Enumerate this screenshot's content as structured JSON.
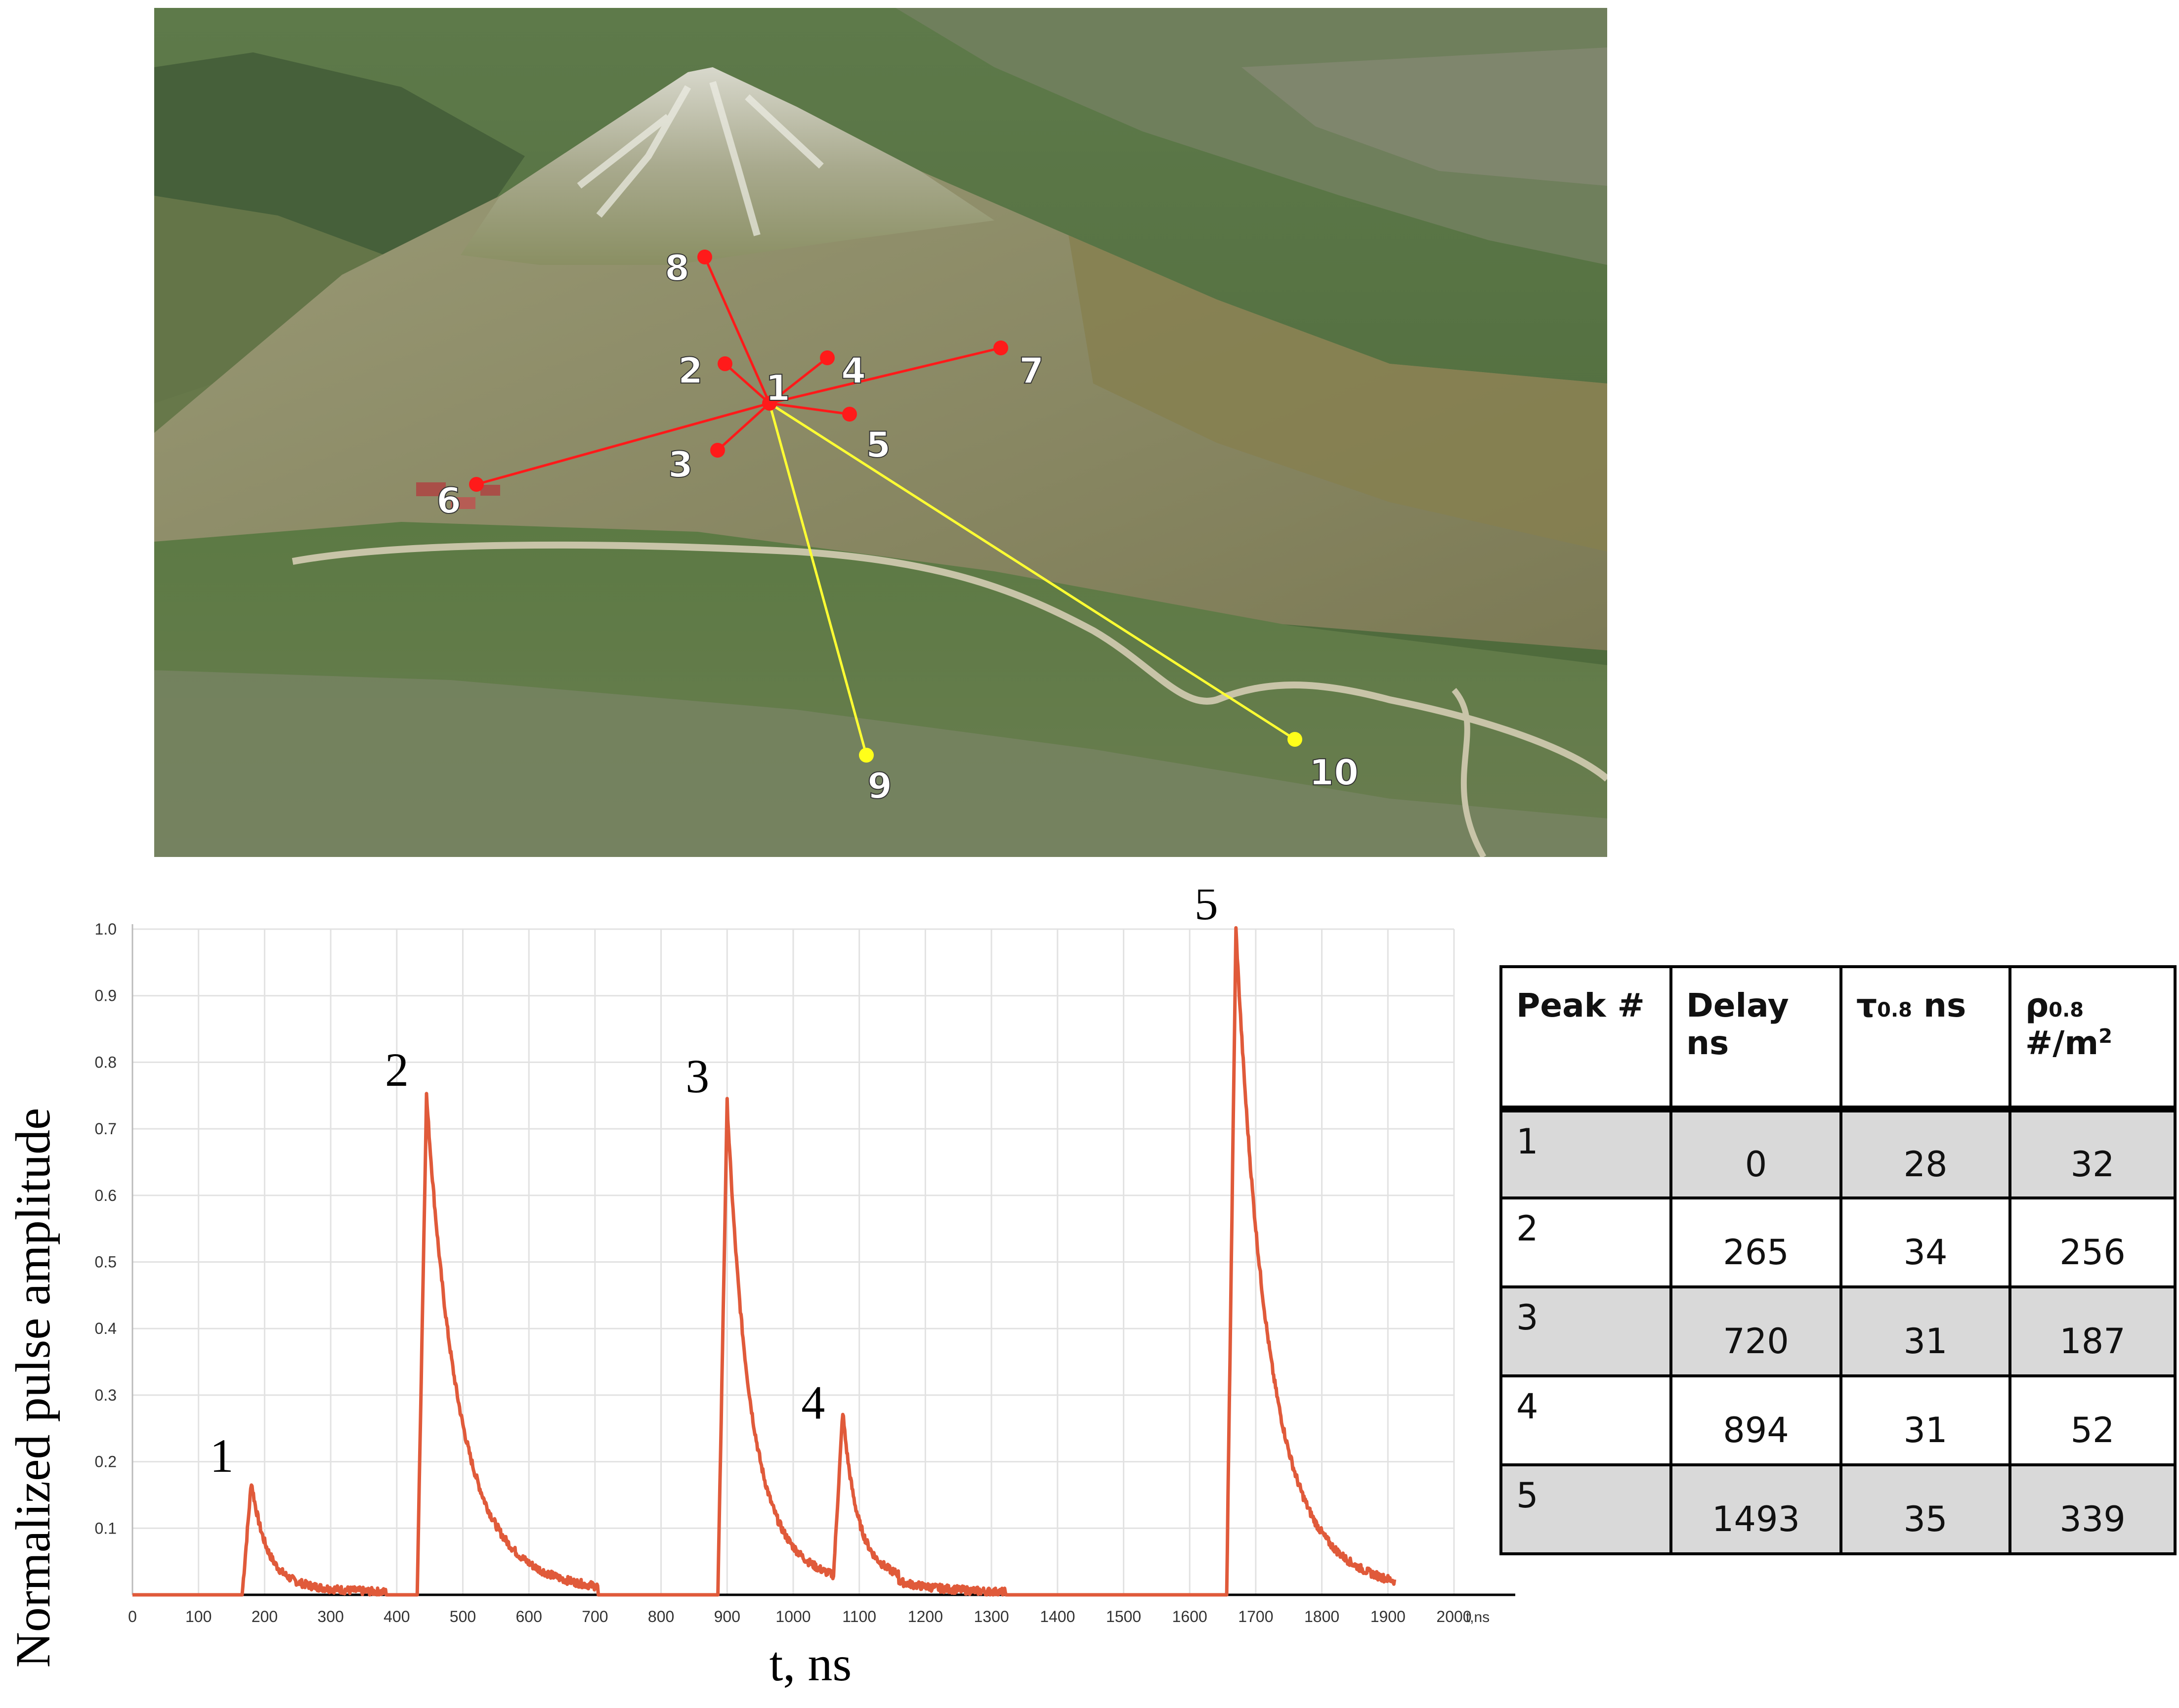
{
  "map": {
    "stations": [
      {
        "label": "1",
        "color": "#ff1a1a"
      },
      {
        "label": "2",
        "color": "#ff1a1a"
      },
      {
        "label": "3",
        "color": "#ff1a1a"
      },
      {
        "label": "4",
        "color": "#ff1a1a"
      },
      {
        "label": "5",
        "color": "#ff1a1a"
      },
      {
        "label": "6",
        "color": "#ff1a1a"
      },
      {
        "label": "7",
        "color": "#ff1a1a"
      },
      {
        "label": "8",
        "color": "#ff1a1a"
      },
      {
        "label": "9",
        "color": "#ffff1a"
      },
      {
        "label": "10",
        "color": "#ffff1a"
      }
    ]
  },
  "chart_data": {
    "type": "line",
    "ylabel": "Normalized pulse amplitude",
    "xlabel": "t, ns",
    "x_tick_unit": "t,ns",
    "xlim": [
      0,
      2000
    ],
    "ylim": [
      0,
      1.0
    ],
    "x_ticks": [
      "0",
      "100",
      "200",
      "300",
      "400",
      "500",
      "600",
      "700",
      "800",
      "900",
      "1000",
      "1100",
      "1200",
      "1300",
      "1400",
      "1500",
      "1600",
      "1700",
      "1800",
      "1900",
      "2000"
    ],
    "y_ticks": [
      "0.1",
      "0.2",
      "0.3",
      "0.4",
      "0.5",
      "0.6",
      "0.7",
      "0.8",
      "0.9",
      "1.0"
    ],
    "line_color": "#e05a3a",
    "grid": true,
    "peaks": [
      {
        "label": "1",
        "t": 180,
        "amplitude": 0.17
      },
      {
        "label": "2",
        "t": 445,
        "amplitude": 0.75
      },
      {
        "label": "3",
        "t": 900,
        "amplitude": 0.74
      },
      {
        "label": "4",
        "t": 1075,
        "amplitude": 0.25
      },
      {
        "label": "5",
        "t": 1670,
        "amplitude": 1.0
      }
    ]
  },
  "table": {
    "headers": {
      "peak": "Peak #",
      "delay_line1": "Delay",
      "delay_line2": "ns",
      "tau_symbol": "τ",
      "tau_sub": "0.8",
      "tau_unit": "ns",
      "rho_symbol": "ρ",
      "rho_sub": "0.8",
      "rho_unit": "#/m",
      "rho_sup": "2"
    },
    "rows": [
      {
        "peak": "1",
        "delay": "0",
        "tau": "28",
        "rho": "32"
      },
      {
        "peak": "2",
        "delay": "265",
        "tau": "34",
        "rho": "256"
      },
      {
        "peak": "3",
        "delay": "720",
        "tau": "31",
        "rho": "187"
      },
      {
        "peak": "4",
        "delay": "894",
        "tau": "31",
        "rho": "52"
      },
      {
        "peak": "5",
        "delay": "1493",
        "tau": "35",
        "rho": "339"
      }
    ]
  }
}
